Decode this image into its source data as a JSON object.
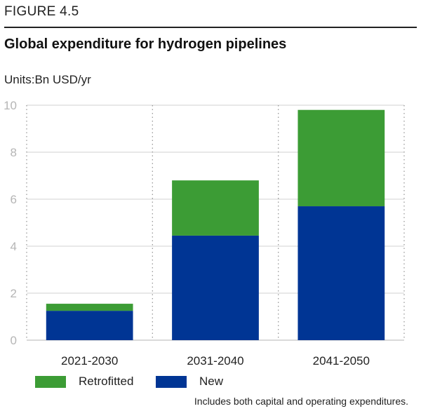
{
  "figure_label": "FIGURE 4.5",
  "units": "Units:Bn USD/yr",
  "note": "Includes both capital and operating expenditures.",
  "colors": {
    "retrofitted": "#3c9c35",
    "new": "#003594"
  },
  "chart_data": {
    "type": "bar",
    "stacked": true,
    "title": "Global expenditure for hydrogen pipelines",
    "xlabel": "",
    "ylabel": "",
    "categories": [
      "2021-2030",
      "2031-2040",
      "2041-2050"
    ],
    "series": [
      {
        "name": "New",
        "values": [
          1.25,
          4.45,
          5.7
        ]
      },
      {
        "name": "Retrofitted",
        "values": [
          0.3,
          2.35,
          4.1
        ]
      }
    ],
    "ylim": [
      0,
      10
    ],
    "yticks": [
      0,
      2,
      4,
      6,
      8,
      10
    ],
    "grid": true,
    "legend": "bottom-left"
  }
}
